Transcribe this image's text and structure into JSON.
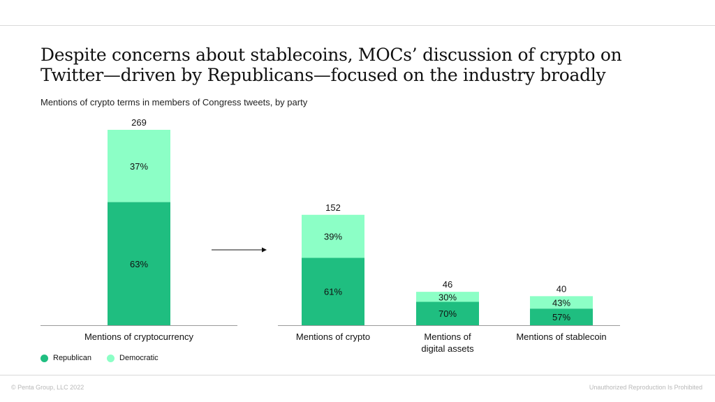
{
  "title": "Despite concerns about stablecoins, MOCs’ discussion of crypto on Twitter—driven by Republicans—focused on the industry broadly",
  "subtitle": "Mentions of crypto terms in members of Congress tweets, by party",
  "colors": {
    "republican": "#1fbe80",
    "democratic": "#8cffc6"
  },
  "legend": {
    "republican": "Republican",
    "democratic": "Democratic"
  },
  "footer": {
    "left": "© Penta Group, LLC 2022",
    "right": "Unauthorized Reproduction Is Prohibited"
  },
  "chart_data": {
    "type": "bar",
    "stacked": true,
    "categories": [
      "Mentions of cryptocurrency",
      "Mentions of crypto",
      "Mentions of\ndigital assets",
      "Mentions of stablecoin"
    ],
    "totals": [
      269,
      152,
      46,
      40
    ],
    "series": [
      {
        "name": "Republican",
        "share_labels": [
          "63%",
          "61%",
          "70%",
          "57%"
        ],
        "shares": [
          63,
          61,
          70,
          57
        ]
      },
      {
        "name": "Democratic",
        "share_labels": [
          "37%",
          "39%",
          "30%",
          "43%"
        ],
        "shares": [
          37,
          39,
          30,
          43
        ]
      }
    ],
    "ylim": [
      0,
      269
    ],
    "grid": false,
    "legend_position": "bottom-left"
  }
}
